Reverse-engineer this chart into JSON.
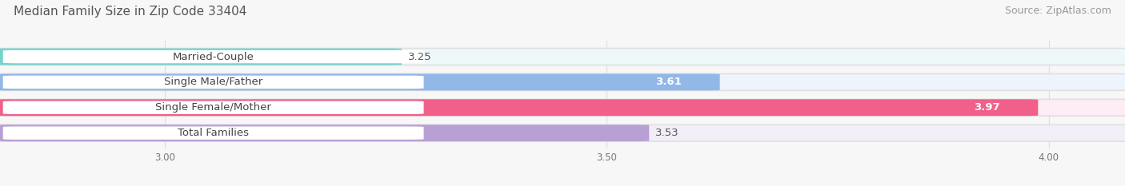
{
  "title": "Median Family Size in Zip Code 33404",
  "source": "Source: ZipAtlas.com",
  "categories": [
    "Married-Couple",
    "Single Male/Father",
    "Single Female/Mother",
    "Total Families"
  ],
  "values": [
    3.25,
    3.61,
    3.97,
    3.53
  ],
  "bar_colors": [
    "#72d4cc",
    "#92b8e8",
    "#f0608a",
    "#b8a0d4"
  ],
  "bar_bg_colors": [
    "#eef8f8",
    "#eef4fc",
    "#fceef4",
    "#f2eef8"
  ],
  "value_inside": [
    false,
    true,
    true,
    false
  ],
  "xlim": [
    2.82,
    4.08
  ],
  "xticks": [
    3.0,
    3.5,
    4.0
  ],
  "bar_height": 0.62,
  "label_fontsize": 9.5,
  "value_fontsize": 9.5,
  "title_fontsize": 11,
  "source_fontsize": 9,
  "bg_color": "#f7f7f7",
  "pill_color": "#ffffff",
  "text_color": "#444444",
  "value_outside_color": "#555555",
  "value_inside_color": "#ffffff",
  "grid_color": "#dddddd"
}
